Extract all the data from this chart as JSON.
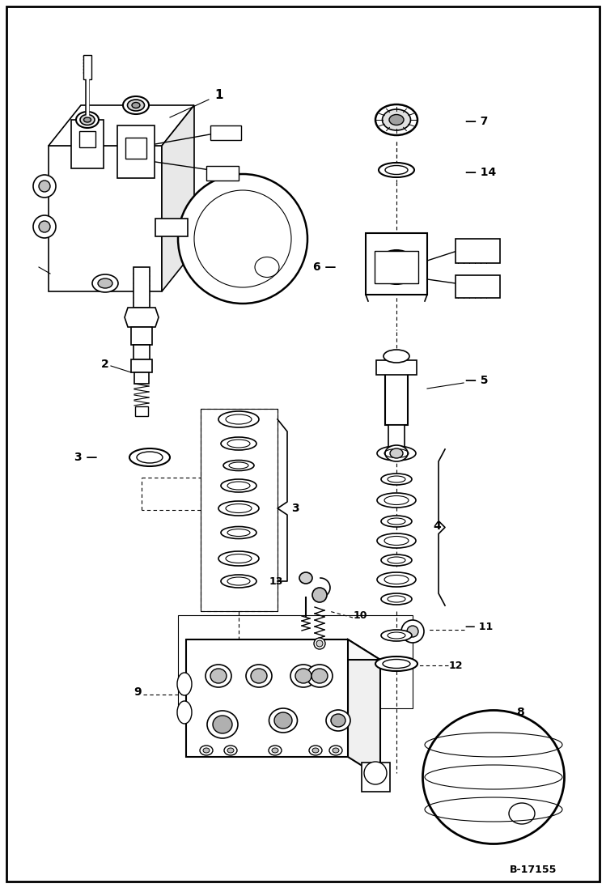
{
  "background_color": "#ffffff",
  "border_color": "#000000",
  "text_color": "#000000",
  "reference_code": "B-17155",
  "fig_width": 7.49,
  "fig_height": 10.97,
  "dpi": 100
}
